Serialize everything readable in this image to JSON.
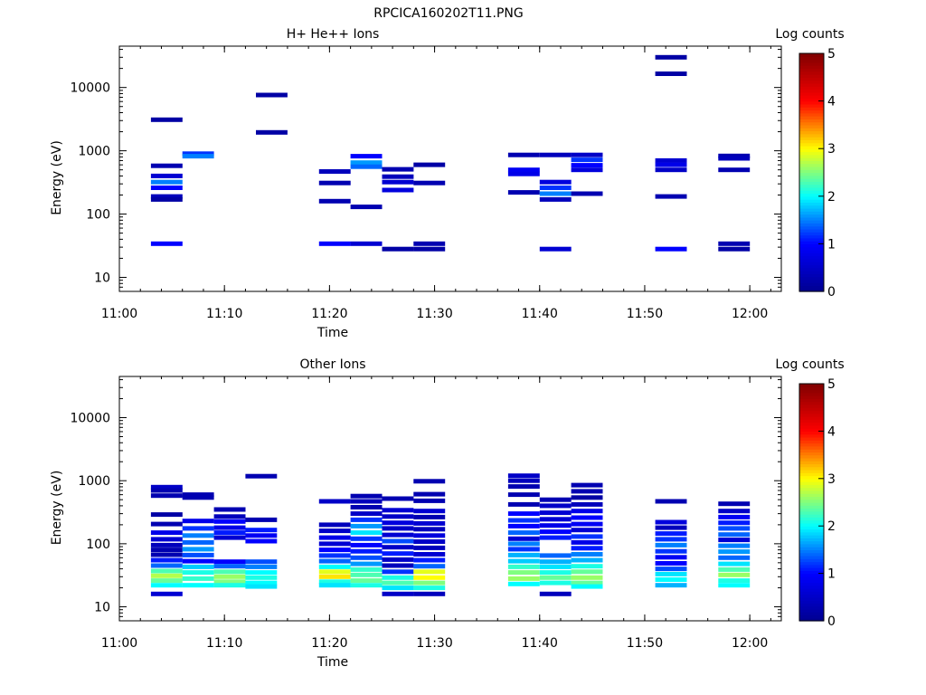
{
  "figure_title": "RPCICA160202T11.PNG",
  "colors": {
    "colormap": [
      "#00008f",
      "#0000ff",
      "#00ffff",
      "#ffff00",
      "#ff0000",
      "#800000"
    ],
    "background": "#ffffff"
  },
  "chart_data": [
    {
      "type": "heatmap",
      "title": "H+ He++ Ions",
      "xlabel": "Time",
      "ylabel": "Energy (eV)",
      "colorbar_label": "Log counts",
      "colorbar_ticks": [
        "0",
        "1",
        "2",
        "3",
        "4",
        "5"
      ],
      "clim": [
        0,
        5
      ],
      "x_scale": "time",
      "y_scale": "log",
      "xlim": [
        "11:00",
        "12:03"
      ],
      "ylim": [
        6,
        45000
      ],
      "x_ticks": [
        "11:00",
        "11:10",
        "11:20",
        "11:30",
        "11:40",
        "11:50",
        "12:00"
      ],
      "y_ticks": [
        "10",
        "100",
        "1000",
        "10000"
      ],
      "grid": false,
      "cells": [
        {
          "t0": "11:03",
          "t1": "11:06",
          "e": [
            3100
          ],
          "v": [
            0.2
          ]
        },
        {
          "t0": "11:03",
          "t1": "11:06",
          "e": [
            580,
            400,
            320,
            260,
            190,
            170
          ],
          "v": [
            0.3,
            0.6,
            1.5,
            1.0,
            0.4,
            0.2
          ]
        },
        {
          "t0": "11:03",
          "t1": "11:06",
          "e": [
            34
          ],
          "v": [
            1.0
          ]
        },
        {
          "t0": "11:06",
          "t1": "11:09",
          "e": [
            900,
            820
          ],
          "v": [
            1.2,
            1.5
          ]
        },
        {
          "t0": "11:13",
          "t1": "11:16",
          "e": [
            7600,
            1950
          ],
          "v": [
            0.2,
            0.2
          ]
        },
        {
          "t0": "11:19",
          "t1": "11:22",
          "e": [
            470,
            310,
            160,
            34
          ],
          "v": [
            0.4,
            0.3,
            0.3,
            1.0
          ]
        },
        {
          "t0": "11:22",
          "t1": "11:25",
          "e": [
            820,
            650,
            560,
            130,
            34
          ],
          "v": [
            1.0,
            1.6,
            1.4,
            0.3,
            0.6
          ]
        },
        {
          "t0": "11:25",
          "t1": "11:28",
          "e": [
            510,
            390,
            320,
            240,
            28
          ],
          "v": [
            0.3,
            0.4,
            0.6,
            0.7,
            0.2
          ]
        },
        {
          "t0": "11:28",
          "t1": "11:31",
          "e": [
            600,
            310,
            34,
            28
          ],
          "v": [
            0.2,
            0.3,
            0.3,
            0.2
          ]
        },
        {
          "t0": "11:37",
          "t1": "11:40",
          "e": [
            860,
            500,
            430,
            220
          ],
          "v": [
            0.3,
            0.9,
            0.8,
            0.3
          ]
        },
        {
          "t0": "11:40",
          "t1": "11:43",
          "e": [
            860,
            320,
            260,
            210,
            170,
            28
          ],
          "v": [
            0.4,
            0.7,
            1.2,
            1.5,
            0.4,
            0.6
          ]
        },
        {
          "t0": "11:43",
          "t1": "11:46",
          "e": [
            860,
            720,
            590,
            500,
            210
          ],
          "v": [
            0.5,
            1.2,
            1.0,
            0.7,
            0.3
          ]
        },
        {
          "t0": "11:51",
          "t1": "11:54",
          "e": [
            30000,
            16500,
            700,
            600,
            500,
            190,
            28
          ],
          "v": [
            0.2,
            0.2,
            0.6,
            0.8,
            0.5,
            0.3,
            1.0
          ]
        },
        {
          "t0": "11:57",
          "t1": "12:00",
          "e": [
            830,
            760,
            500,
            34,
            28
          ],
          "v": [
            0.3,
            0.4,
            0.3,
            0.3,
            0.2
          ]
        }
      ]
    },
    {
      "type": "heatmap",
      "title": "Other Ions",
      "xlabel": "Time",
      "ylabel": "Energy (eV)",
      "colorbar_label": "Log counts",
      "colorbar_ticks": [
        "0",
        "1",
        "2",
        "3",
        "4",
        "5"
      ],
      "clim": [
        0,
        5
      ],
      "x_scale": "time",
      "y_scale": "log",
      "xlim": [
        "11:00",
        "12:03"
      ],
      "ylim": [
        6,
        45000
      ],
      "x_ticks": [
        "11:00",
        "11:10",
        "11:20",
        "11:30",
        "11:40",
        "11:50",
        "12:00"
      ],
      "y_ticks": [
        "10",
        "100",
        "1000",
        "10000"
      ],
      "grid": false,
      "cells": [
        {
          "t0": "11:03",
          "t1": "11:06",
          "e": [
            790,
            700,
            580,
            290,
            205,
            150,
            118,
            95,
            80,
            67,
            55,
            45,
            37,
            31,
            26,
            22,
            16
          ],
          "v": [
            0.5,
            0.3,
            0.3,
            0.2,
            0.3,
            0.8,
            0.6,
            0.4,
            0.3,
            0.3,
            1.1,
            1.4,
            2.3,
            2.7,
            2.4,
            2.0,
            0.6
          ]
        },
        {
          "t0": "11:06",
          "t1": "11:09",
          "e": [
            600,
            540,
            230,
            175,
            135,
            105,
            82,
            66,
            53,
            43,
            35,
            28,
            22
          ],
          "v": [
            0.3,
            0.3,
            0.8,
            1.2,
            1.5,
            1.4,
            1.6,
            1.3,
            1.0,
            1.8,
            2.1,
            2.2,
            2.0
          ]
        },
        {
          "t0": "11:09",
          "t1": "11:12",
          "e": [
            350,
            270,
            225,
            180,
            150,
            125,
            52,
            44,
            36,
            30,
            25,
            22
          ],
          "v": [
            0.3,
            0.4,
            1.0,
            0.8,
            1.1,
            0.6,
            1.0,
            1.4,
            2.3,
            2.6,
            2.5,
            2.1
          ]
        },
        {
          "t0": "11:12",
          "t1": "11:15",
          "e": [
            1180,
            240,
            165,
            135,
            110,
            52,
            43,
            35,
            29,
            24,
            21
          ],
          "v": [
            0.3,
            0.3,
            1.1,
            0.9,
            1.0,
            1.3,
            1.5,
            2.0,
            2.1,
            2.0,
            1.9
          ]
        },
        {
          "t0": "11:19",
          "t1": "11:22",
          "e": [
            470,
            200,
            160,
            125,
            100,
            80,
            65,
            53,
            43,
            36,
            30,
            25,
            22
          ],
          "v": [
            0.5,
            0.4,
            0.5,
            0.8,
            0.6,
            1.0,
            1.2,
            1.4,
            2.0,
            2.9,
            3.1,
            2.1,
            1.9
          ]
        },
        {
          "t0": "11:22",
          "t1": "11:25",
          "e": [
            570,
            470,
            380,
            300,
            240,
            190,
            150,
            120,
            95,
            76,
            60,
            48,
            39,
            32,
            26,
            22
          ],
          "v": [
            0.3,
            0.4,
            0.3,
            0.5,
            1.2,
            1.6,
            1.9,
            1.2,
            1.0,
            1.1,
            1.3,
            1.6,
            2.2,
            2.3,
            2.4,
            2.1
          ]
        },
        {
          "t0": "11:25",
          "t1": "11:28",
          "e": [
            520,
            340,
            270,
            215,
            175,
            138,
            110,
            88,
            70,
            56,
            45,
            36,
            29,
            24,
            20,
            16
          ],
          "v": [
            0.3,
            0.6,
            0.5,
            0.7,
            0.5,
            0.6,
            1.3,
            0.5,
            1.1,
            0.5,
            0.4,
            1.2,
            2.1,
            2.3,
            1.9,
            0.5
          ]
        },
        {
          "t0": "11:28",
          "t1": "11:31",
          "e": [
            980,
            610,
            480,
            330,
            265,
            210,
            170,
            135,
            108,
            86,
            68,
            55,
            44,
            36,
            29,
            24,
            20,
            16
          ],
          "v": [
            0.3,
            0.3,
            0.3,
            0.6,
            0.3,
            0.6,
            0.4,
            0.7,
            0.5,
            0.4,
            0.6,
            1.1,
            1.4,
            2.9,
            3.0,
            2.5,
            2.1,
            0.4
          ]
        },
        {
          "t0": "11:37",
          "t1": "11:40",
          "e": [
            1200,
            1000,
            810,
            600,
            420,
            300,
            235,
            190,
            150,
            120,
            100,
            82,
            66,
            53,
            43,
            35,
            28,
            23
          ],
          "v": [
            0.5,
            0.4,
            0.3,
            0.3,
            0.3,
            1.0,
            1.2,
            1.0,
            1.4,
            0.6,
            1.5,
            1.2,
            1.7,
            1.8,
            2.2,
            2.5,
            2.6,
            2.0
          ]
        },
        {
          "t0": "11:40",
          "t1": "11:43",
          "e": [
            500,
            400,
            310,
            245,
            195,
            155,
            125,
            65,
            52,
            43,
            35,
            29,
            24,
            16
          ],
          "v": [
            0.3,
            0.5,
            0.6,
            0.6,
            0.8,
            1.0,
            1.1,
            1.4,
            1.7,
            1.9,
            2.1,
            2.4,
            2.1,
            0.4
          ]
        },
        {
          "t0": "11:43",
          "t1": "11:46",
          "e": [
            850,
            680,
            540,
            420,
            330,
            260,
            205,
            165,
            130,
            105,
            85,
            68,
            55,
            44,
            36,
            29,
            24,
            21
          ],
          "v": [
            0.3,
            0.3,
            0.2,
            0.4,
            0.8,
            1.0,
            0.9,
            0.6,
            1.2,
            0.8,
            1.1,
            1.5,
            1.7,
            2.1,
            2.4,
            2.6,
            2.4,
            2.0
          ]
        },
        {
          "t0": "11:51",
          "t1": "11:54",
          "e": [
            470,
            220,
            180,
            145,
            118,
            95,
            76,
            61,
            49,
            40,
            33,
            27,
            22
          ],
          "v": [
            0.3,
            0.7,
            0.4,
            1.1,
            1.2,
            1.5,
            1.2,
            0.9,
            1.0,
            1.3,
            1.9,
            2.0,
            1.7
          ]
        },
        {
          "t0": "11:57",
          "t1": "12:00",
          "e": [
            430,
            330,
            265,
            215,
            175,
            140,
            115,
            93,
            75,
            60,
            48,
            39,
            32,
            26,
            22
          ],
          "v": [
            0.3,
            0.5,
            0.9,
            1.1,
            1.3,
            1.4,
            0.6,
            1.5,
            1.6,
            1.4,
            1.9,
            2.3,
            2.6,
            2.1,
            2.0
          ]
        }
      ]
    }
  ]
}
